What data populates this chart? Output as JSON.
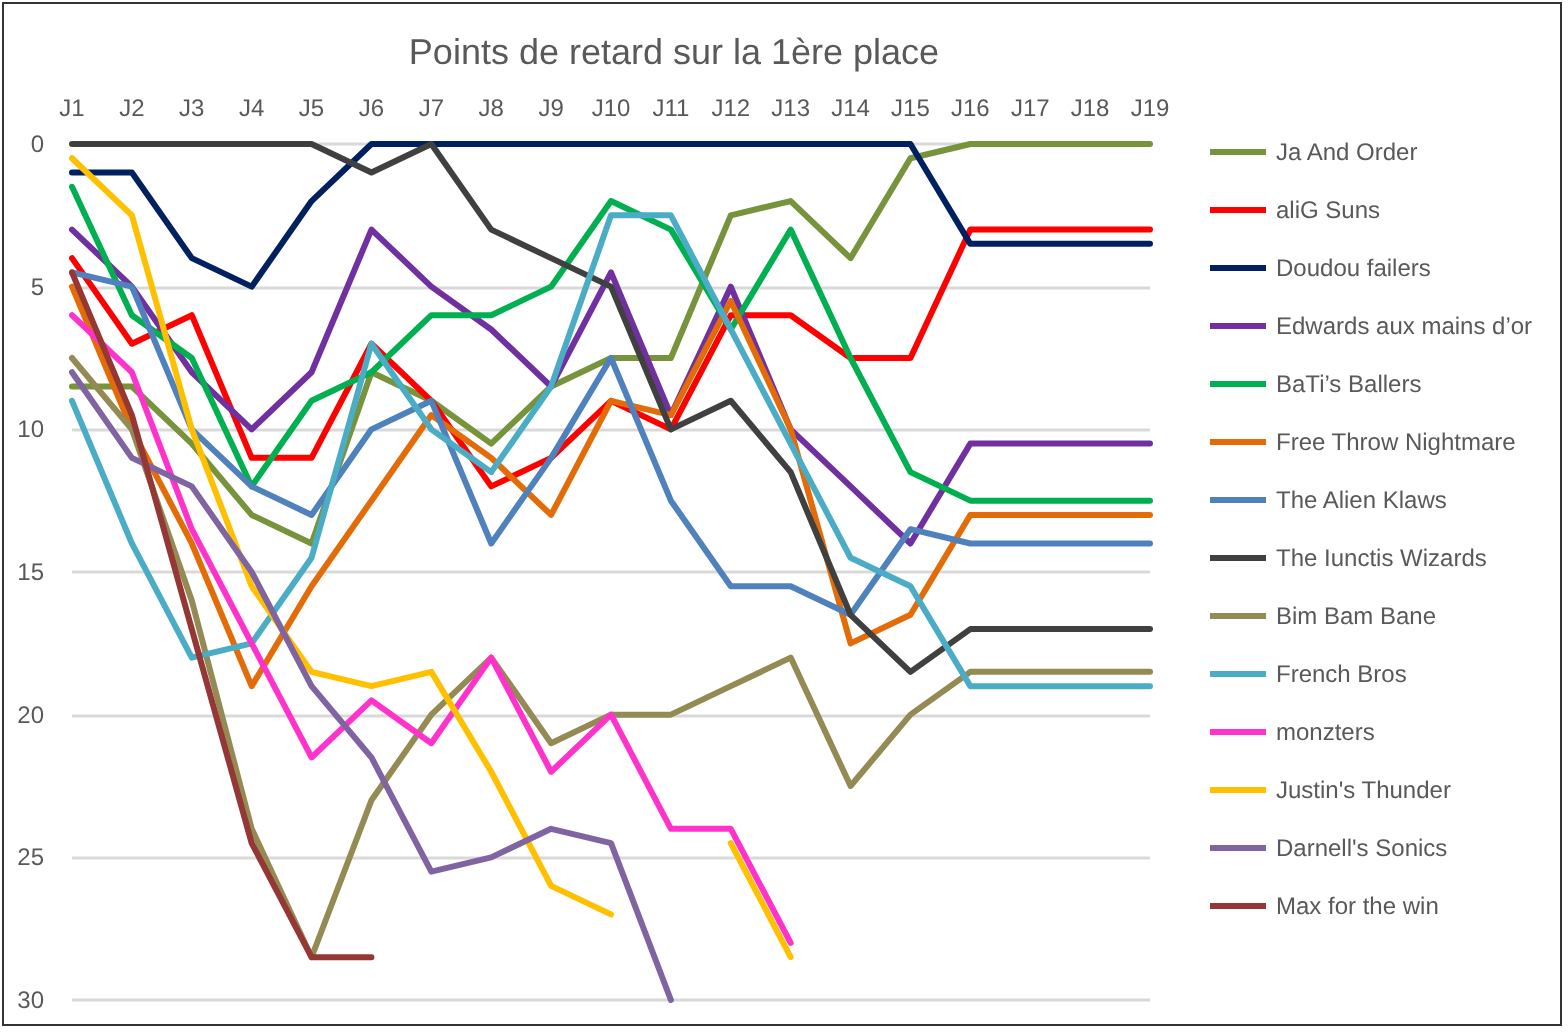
{
  "chart_data": {
    "type": "line",
    "title": "Points de retard sur la 1ère place",
    "categories": [
      "J1",
      "J2",
      "J3",
      "J4",
      "J5",
      "J6",
      "J7",
      "J8",
      "J9",
      "J10",
      "J11",
      "J12",
      "J13",
      "J14",
      "J15",
      "J16",
      "J17",
      "J18",
      "J19"
    ],
    "ylim": [
      30,
      0
    ],
    "yticks": [
      0,
      5,
      10,
      15,
      20,
      25,
      30
    ],
    "grid": "y",
    "legend": "right",
    "marker": "none",
    "series": [
      {
        "name": "Ja And Order",
        "color": "#77933c",
        "values": [
          8.5,
          8.5,
          10.5,
          13,
          14,
          8,
          9,
          10.5,
          8.5,
          7.5,
          7.5,
          2.5,
          2,
          4,
          0.5,
          0,
          0,
          0,
          0
        ]
      },
      {
        "name": "aliG Suns",
        "color": "#ff0000",
        "values": [
          4,
          7,
          6,
          11,
          11,
          7,
          9,
          12,
          11,
          9,
          10,
          6,
          6,
          7.5,
          7.5,
          3,
          3,
          3,
          3
        ]
      },
      {
        "name": "Doudou failers",
        "color": "#002060",
        "values": [
          1,
          1,
          4,
          5,
          2,
          0,
          0,
          0,
          0,
          0,
          0,
          0,
          0,
          0,
          0,
          3.5,
          3.5,
          3.5,
          3.5
        ]
      },
      {
        "name": "Edwards aux mains d’or",
        "color": "#7030a0",
        "values": [
          3,
          5,
          8,
          10,
          8,
          3,
          5,
          6.5,
          8.5,
          4.5,
          9.5,
          5,
          10,
          12,
          14,
          10.5,
          10.5,
          10.5,
          10.5
        ]
      },
      {
        "name": "BaTi’s Ballers",
        "color": "#00b050",
        "values": [
          1.5,
          6,
          7.5,
          12,
          9,
          8,
          6,
          6,
          5,
          2,
          3,
          6.5,
          3,
          7.5,
          11.5,
          12.5,
          12.5,
          12.5,
          12.5
        ]
      },
      {
        "name": "Free Throw Nightmare",
        "color": "#e36c09",
        "values": [
          5,
          10,
          14,
          19,
          15.5,
          12.5,
          9.5,
          11,
          13,
          9,
          9.5,
          5.5,
          10,
          17.5,
          16.5,
          13,
          13,
          13,
          13
        ]
      },
      {
        "name": "The Alien Klaws",
        "color": "#4f81bd",
        "values": [
          4.5,
          5,
          10,
          12,
          13,
          10,
          9,
          14,
          11,
          7.5,
          12.5,
          15.5,
          15.5,
          16.5,
          13.5,
          14,
          14,
          14,
          14
        ]
      },
      {
        "name": "The Iunctis Wizards",
        "color": "#404040",
        "values": [
          0,
          0,
          0,
          0,
          0,
          1,
          0,
          3,
          4,
          5,
          10,
          9,
          11.5,
          16.5,
          18.5,
          17,
          17,
          17,
          17
        ]
      },
      {
        "name": "Bim Bam Bane",
        "color": "#948a54",
        "values": [
          7.5,
          10,
          16,
          24,
          28.5,
          23,
          20,
          18,
          21,
          20,
          20,
          19,
          18,
          22.5,
          20,
          18.5,
          18.5,
          18.5,
          18.5
        ]
      },
      {
        "name": "French Bros",
        "color": "#4bacc6",
        "values": [
          9,
          14,
          18,
          17.5,
          14.5,
          7,
          10,
          11.5,
          8.5,
          2.5,
          2.5,
          6.5,
          10.5,
          14.5,
          15.5,
          19,
          19,
          19,
          19
        ]
      },
      {
        "name": "monzters",
        "color": "#ff33cc",
        "values": [
          6,
          8,
          13.5,
          17.5,
          21.5,
          19.5,
          21,
          18,
          22,
          20,
          24,
          24,
          28,
          null,
          null,
          null,
          null,
          null,
          null
        ]
      },
      {
        "name": "Justin's Thunder",
        "color": "#ffc000",
        "values": [
          0.5,
          2.5,
          10,
          15.5,
          18.5,
          19,
          18.5,
          22,
          26,
          27,
          null,
          24.5,
          28.5,
          null,
          null,
          null,
          null,
          null,
          null
        ]
      },
      {
        "name": "Darnell's Sonics",
        "color": "#8064a2",
        "values": [
          8,
          11,
          12,
          15,
          19,
          21.5,
          25.5,
          25,
          24,
          24.5,
          30,
          null,
          null,
          null,
          null,
          null,
          null,
          null,
          null
        ]
      },
      {
        "name": "Max for the win",
        "color": "#953735",
        "values": [
          4.5,
          9.5,
          17,
          24.5,
          28.5,
          28.5,
          null,
          null,
          null,
          null,
          null,
          null,
          null,
          null,
          null,
          null,
          null,
          null,
          null
        ]
      }
    ]
  }
}
